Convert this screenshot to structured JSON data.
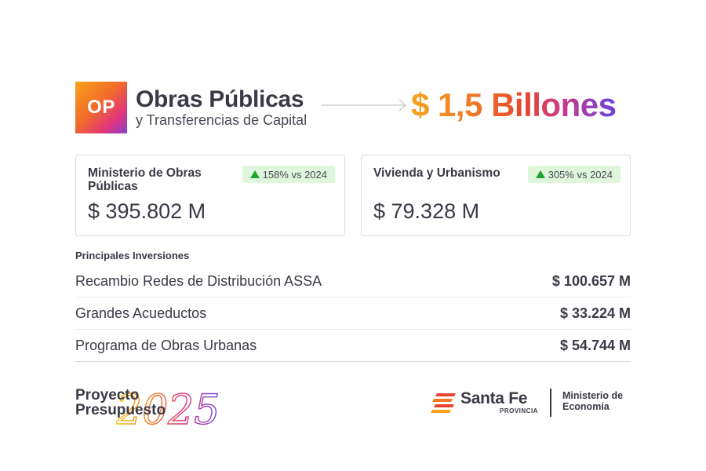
{
  "header": {
    "badge": "OP",
    "title": "Obras Públicas",
    "subtitle": "y Transferencias de Capital",
    "total": "$ 1,5 Billones"
  },
  "cards": [
    {
      "label": "Ministerio de Obras Públicas",
      "change": "158% vs 2024",
      "amount": "$ 395.802 M"
    },
    {
      "label": "Vivienda y Urbanismo",
      "change": "305% vs 2024",
      "amount": "$ 79.328 M"
    }
  ],
  "investments": {
    "heading": "Principales Inversiones",
    "rows": [
      {
        "name": "Recambio Redes de Distribución ASSA",
        "value": "$ 100.657 M"
      },
      {
        "name": "Grandes Acueductos",
        "value": "$ 33.224 M"
      },
      {
        "name": "Programa de Obras Urbanas",
        "value": "$ 54.744 M"
      }
    ]
  },
  "footer": {
    "proyecto_line1": "Proyecto",
    "proyecto_line2": "Presupuesto",
    "year": "2025",
    "province_name": "Santa Fe",
    "province_label": "PROVINCIA",
    "ministry_line1": "Ministerio de",
    "ministry_line2": "Economía"
  },
  "colors": {
    "text": "#3a3a46",
    "up_arrow": "#1ba52d",
    "badge_bg": "#dff5dc",
    "gradient_start": "#f7a21b",
    "gradient_end": "#6a46dd"
  },
  "icons": [
    "up-triangle-icon",
    "arrow-right-icon",
    "santa-fe-flag-logo"
  ]
}
